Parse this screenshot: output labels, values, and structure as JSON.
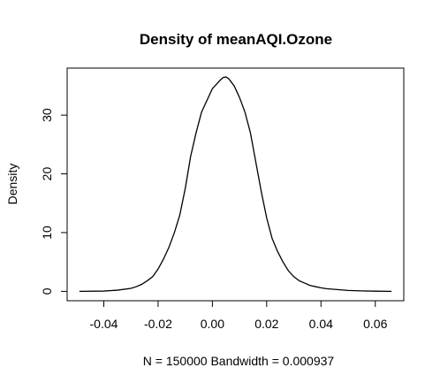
{
  "chart_data": {
    "type": "line",
    "title": "Density of meanAQI.Ozone",
    "xlabel": "N = 150000   Bandwidth = 0.000937",
    "ylabel": "Density",
    "xlim": [
      -0.0535,
      0.0705
    ],
    "ylim": [
      -1.6,
      38.0
    ],
    "x_ticks": [
      -0.04,
      -0.02,
      0.0,
      0.02,
      0.04,
      0.06
    ],
    "x_tick_labels": [
      "-0.04",
      "-0.02",
      "0.00",
      "0.02",
      "0.04",
      "0.06"
    ],
    "y_ticks": [
      0,
      10,
      20,
      30
    ],
    "y_tick_labels": [
      "0",
      "10",
      "20",
      "30"
    ],
    "grid": false,
    "series": [
      {
        "x": [
          -0.049,
          -0.04,
          -0.035,
          -0.03,
          -0.028,
          -0.026,
          -0.024,
          -0.022,
          -0.02,
          -0.018,
          -0.016,
          -0.014,
          -0.012,
          -0.01,
          -0.008,
          -0.006,
          -0.004,
          -0.002,
          0.0,
          0.002,
          0.003,
          0.004,
          0.005,
          0.006,
          0.007,
          0.008,
          0.009,
          0.01,
          0.012,
          0.014,
          0.016,
          0.018,
          0.02,
          0.022,
          0.024,
          0.026,
          0.028,
          0.03,
          0.032,
          0.034,
          0.036,
          0.038,
          0.04,
          0.042,
          0.046,
          0.05,
          0.055,
          0.06,
          0.066
        ],
        "y": [
          0.0,
          0.05,
          0.2,
          0.5,
          0.8,
          1.2,
          1.8,
          2.5,
          3.8,
          5.5,
          7.5,
          10.0,
          13.0,
          17.5,
          23.0,
          27.0,
          30.5,
          32.5,
          34.5,
          35.5,
          36.0,
          36.4,
          36.5,
          36.2,
          35.6,
          35.0,
          34.0,
          33.0,
          30.5,
          27.0,
          22.0,
          17.0,
          12.5,
          9.0,
          6.8,
          5.0,
          3.5,
          2.5,
          1.8,
          1.4,
          1.0,
          0.8,
          0.6,
          0.45,
          0.3,
          0.15,
          0.07,
          0.03,
          0.0
        ]
      }
    ]
  }
}
